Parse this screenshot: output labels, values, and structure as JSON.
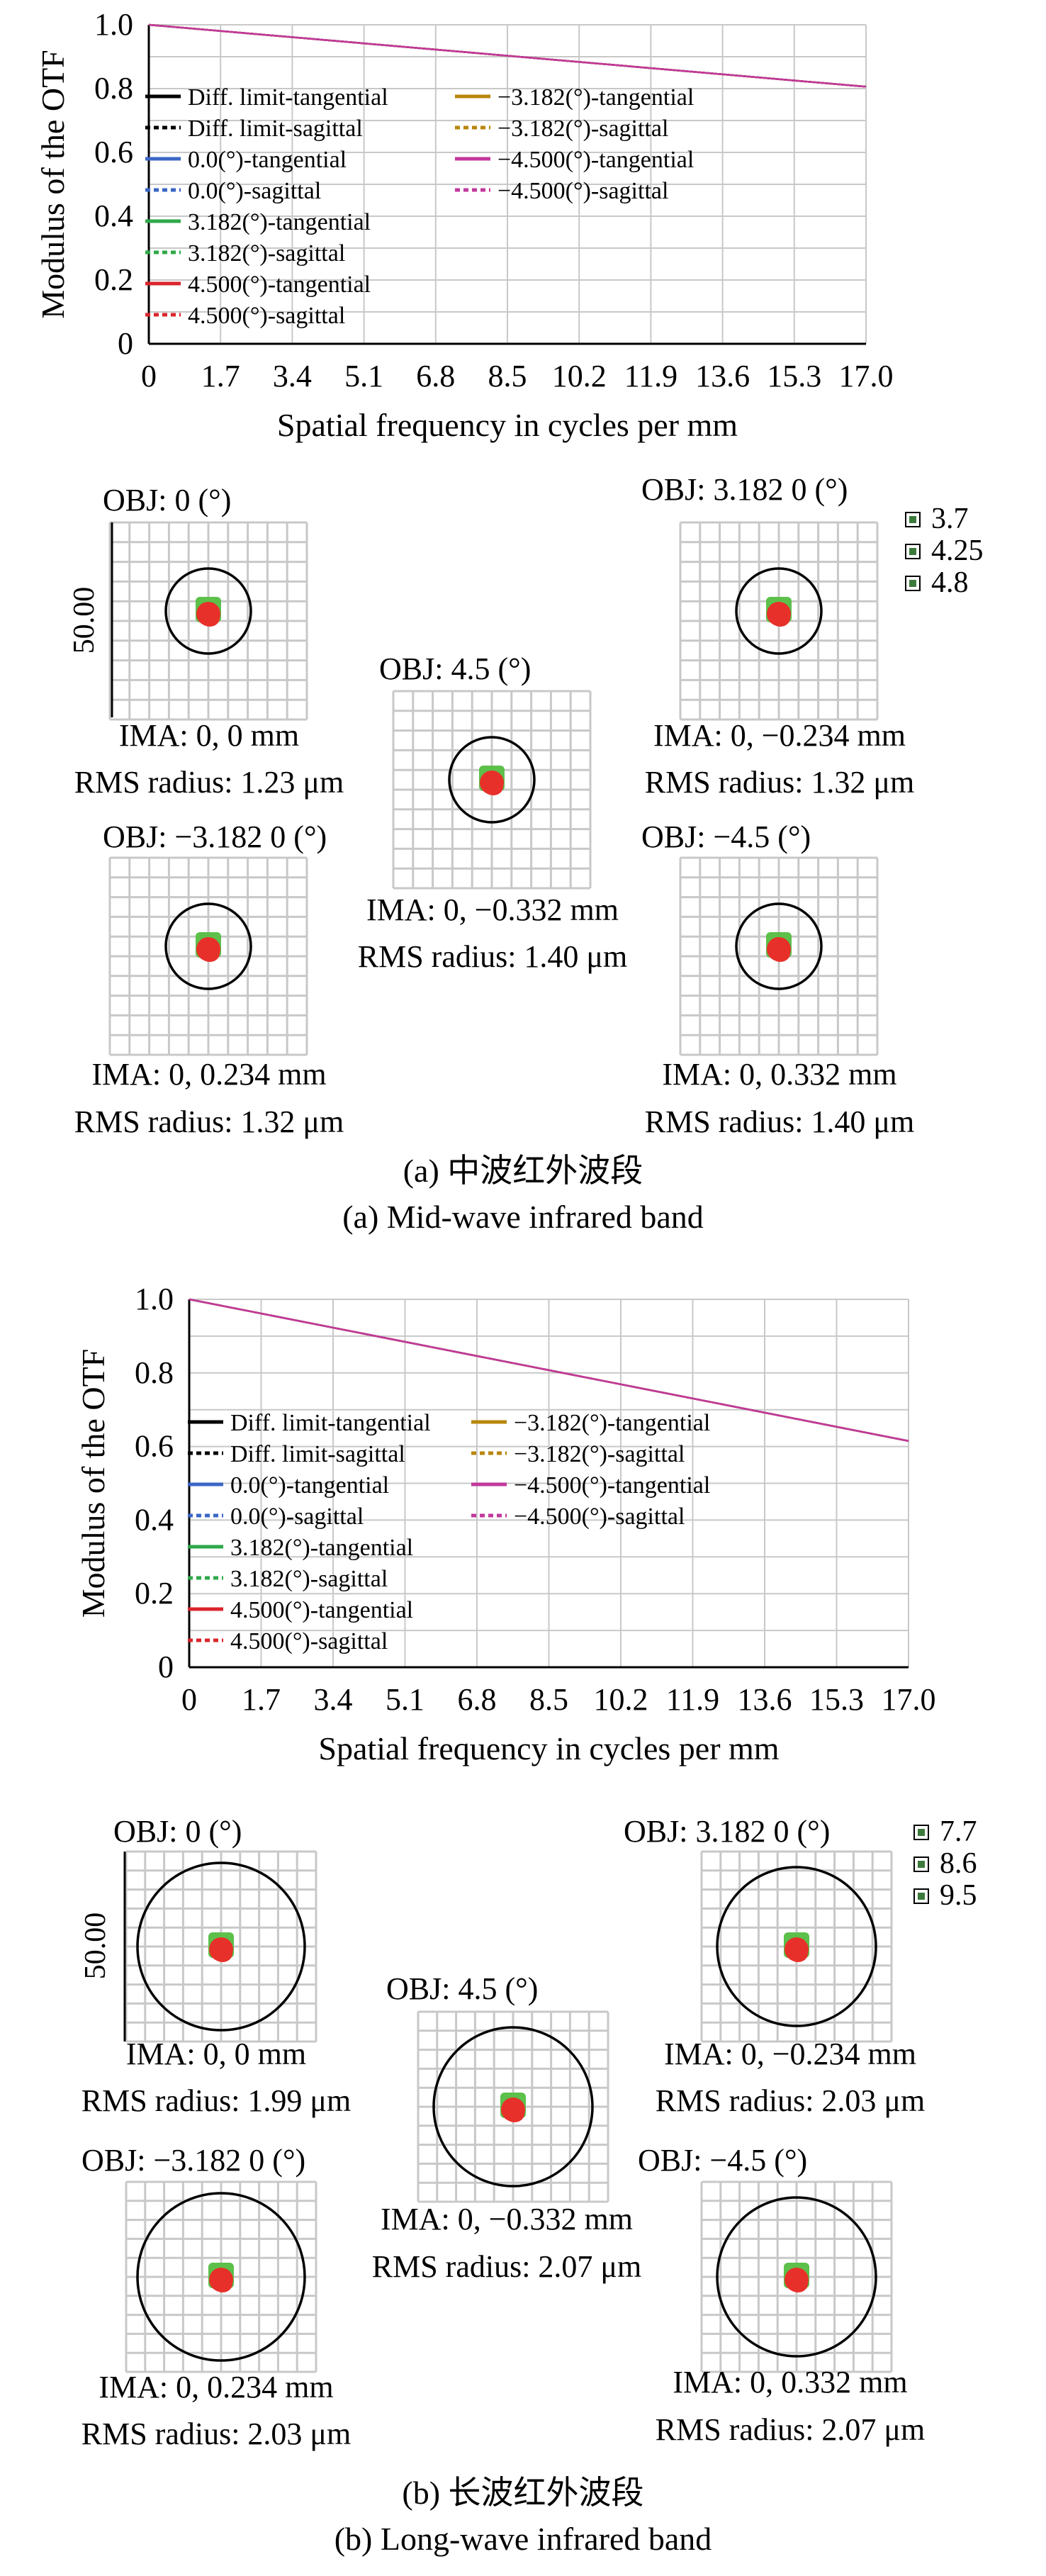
{
  "colors": {
    "diff_tan": "#000000",
    "diff_sag": "#000000",
    "f0_tan": "#3a66c4",
    "f0_sag": "#3a66c4",
    "f3182_tan": "#2ea84a",
    "f3182_sag": "#2ea84a",
    "f45_tan": "#d9252b",
    "f45_sag": "#d9252b",
    "fm3182_tan": "#b8860b",
    "fm3182_sag": "#b8860b",
    "fm45_tan": "#c2389c",
    "fm45_sag": "#c2389c",
    "grid": "#c8c8c8",
    "spot_red": "#e8302a",
    "spot_green": "#5cc04a",
    "spot_blue": "#2c4fa8"
  },
  "panels": [
    {
      "caption_cn": "(a) 中波红外波段",
      "caption_en": "(a) Mid-wave infrared band",
      "mtf": {
        "chart_data": {
          "type": "line",
          "title": "",
          "xlabel": "Spatial frequency in cycles per mm",
          "ylabel": "Modulus of the OTF",
          "xlim": [
            0,
            17.0
          ],
          "ylim": [
            0,
            1.0
          ],
          "x_ticks": [
            "0",
            "1.7",
            "3.4",
            "5.1",
            "6.8",
            "8.5",
            "10.2",
            "11.9",
            "13.6",
            "15.3",
            "17.0"
          ],
          "y_ticks": [
            "0",
            "0.2",
            "0.4",
            "0.6",
            "0.8",
            "1.0"
          ],
          "grid": true,
          "x": [
            0,
            17.0
          ],
          "series": [
            {
              "name": "Diff. limit-tangential",
              "values": [
                1.0,
                0.806
              ]
            },
            {
              "name": "Diff. limit-sagittal",
              "values": [
                1.0,
                0.806
              ]
            },
            {
              "name": "0.0(°)-tangential",
              "values": [
                1.0,
                0.806
              ]
            },
            {
              "name": "0.0(°)-sagittal",
              "values": [
                1.0,
                0.806
              ]
            },
            {
              "name": "3.182(°)-tangential",
              "values": [
                1.0,
                0.806
              ]
            },
            {
              "name": "3.182(°)-sagittal",
              "values": [
                1.0,
                0.806
              ]
            },
            {
              "name": "4.500(°)-tangential",
              "values": [
                1.0,
                0.806
              ]
            },
            {
              "name": "4.500(°)-sagittal",
              "values": [
                1.0,
                0.806
              ]
            },
            {
              "name": "−3.182(°)-tangential",
              "values": [
                1.0,
                0.806
              ]
            },
            {
              "name": "−3.182(°)-sagittal",
              "values": [
                1.0,
                0.806
              ]
            },
            {
              "name": "−4.500(°)-tangential",
              "values": [
                1.0,
                0.806
              ]
            },
            {
              "name": "−4.500(°)-sagittal",
              "values": [
                1.0,
                0.806
              ]
            }
          ]
        }
      },
      "spots": {
        "scale_label": "50.00",
        "wavelengths": [
          "3.7",
          "4.25",
          "4.8"
        ],
        "items": [
          {
            "obj": "OBJ: 0 (°)",
            "ima": "IMA: 0, 0 mm",
            "rms": "RMS radius: 1.23 μm"
          },
          {
            "obj": "OBJ: 3.182 0 (°)",
            "ima": "IMA: 0, −0.234 mm",
            "rms": "RMS radius: 1.32 μm"
          },
          {
            "obj": "OBJ: 4.5 (°)",
            "ima": "IMA: 0, −0.332 mm",
            "rms": "RMS radius: 1.40 μm"
          },
          {
            "obj": "OBJ: −3.182 0 (°)",
            "ima": "IMA: 0, 0.234 mm",
            "rms": "RMS radius: 1.32 μm"
          },
          {
            "obj": "OBJ: −4.5 (°)",
            "ima": "IMA: 0, 0.332 mm",
            "rms": "RMS radius: 1.40 μm"
          }
        ]
      }
    },
    {
      "caption_cn": "(b) 长波红外波段",
      "caption_en": "(b) Long-wave infrared band",
      "mtf": {
        "chart_data": {
          "type": "line",
          "title": "",
          "xlabel": "Spatial frequency in cycles per mm",
          "ylabel": "Modulus of the OTF",
          "xlim": [
            0,
            17.0
          ],
          "ylim": [
            0,
            1.0
          ],
          "x_ticks": [
            "0",
            "1.7",
            "3.4",
            "5.1",
            "6.8",
            "8.5",
            "10.2",
            "11.9",
            "13.6",
            "15.3",
            "17.0"
          ],
          "y_ticks": [
            "0",
            "0.2",
            "0.4",
            "0.6",
            "0.8",
            "1.0"
          ],
          "grid": true,
          "x": [
            0,
            17.0
          ],
          "series": [
            {
              "name": "Diff. limit-tangential",
              "values": [
                1.0,
                0.615
              ]
            },
            {
              "name": "Diff. limit-sagittal",
              "values": [
                1.0,
                0.615
              ]
            },
            {
              "name": "0.0(°)-tangential",
              "values": [
                1.0,
                0.615
              ]
            },
            {
              "name": "0.0(°)-sagittal",
              "values": [
                1.0,
                0.615
              ]
            },
            {
              "name": "3.182(°)-tangential",
              "values": [
                1.0,
                0.615
              ]
            },
            {
              "name": "3.182(°)-sagittal",
              "values": [
                1.0,
                0.615
              ]
            },
            {
              "name": "4.500(°)-tangential",
              "values": [
                1.0,
                0.615
              ]
            },
            {
              "name": "4.500(°)-sagittal",
              "values": [
                1.0,
                0.615
              ]
            },
            {
              "name": "−3.182(°)-tangential",
              "values": [
                1.0,
                0.615
              ]
            },
            {
              "name": "−3.182(°)-sagittal",
              "values": [
                1.0,
                0.615
              ]
            },
            {
              "name": "−4.500(°)-tangential",
              "values": [
                1.0,
                0.615
              ]
            },
            {
              "name": "−4.500(°)-sagittal",
              "values": [
                1.0,
                0.615
              ]
            }
          ]
        }
      },
      "spots": {
        "scale_label": "50.00",
        "wavelengths": [
          "7.7",
          "8.6",
          "9.5"
        ],
        "items": [
          {
            "obj": "OBJ: 0 (°)",
            "ima": "IMA: 0, 0 mm",
            "rms": "RMS radius: 1.99 μm"
          },
          {
            "obj": "OBJ: 3.182 0 (°)",
            "ima": "IMA: 0, −0.234 mm",
            "rms": "RMS radius: 2.03 μm"
          },
          {
            "obj": "OBJ: 4.5 (°)",
            "ima": "IMA: 0, −0.332 mm",
            "rms": "RMS radius: 2.07 μm"
          },
          {
            "obj": "OBJ: −3.182 0 (°)",
            "ima": "IMA: 0, 0.234 mm",
            "rms": "RMS radius: 2.03 μm"
          },
          {
            "obj": "OBJ: −4.5 (°)",
            "ima": "IMA: 0, 0.332 mm",
            "rms": "RMS radius: 2.07 μm"
          }
        ]
      }
    }
  ]
}
